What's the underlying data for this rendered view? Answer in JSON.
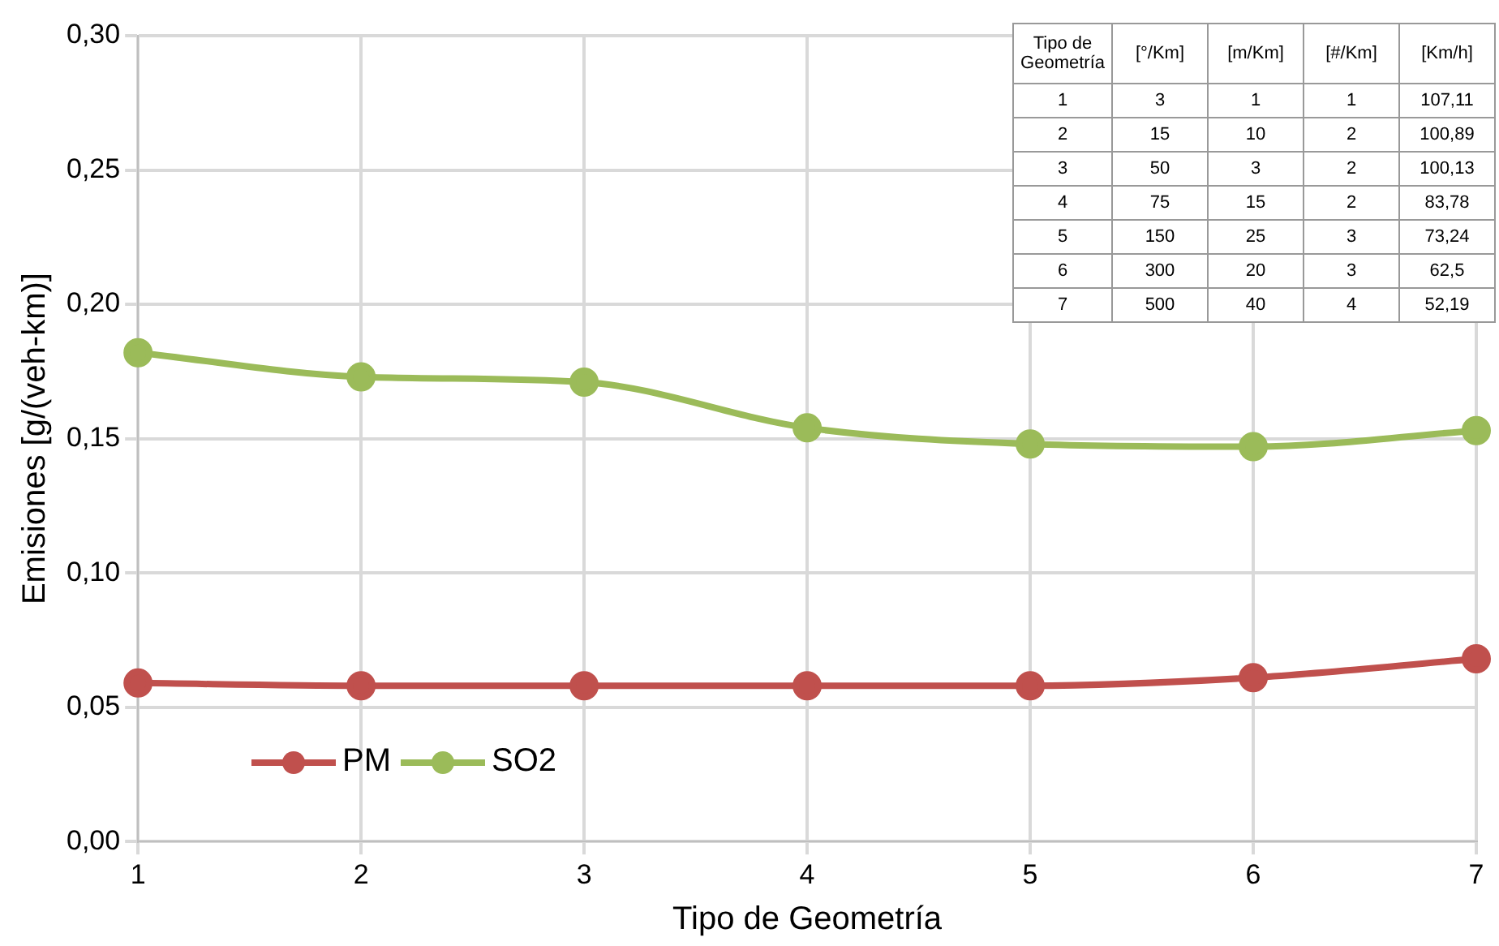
{
  "chart_data": {
    "type": "line",
    "xlabel": "Tipo de Geometría",
    "ylabel": "Emisiones [g/(veh-km)]",
    "categories": [
      "1",
      "2",
      "3",
      "4",
      "5",
      "6",
      "7"
    ],
    "series": [
      {
        "name": "PM",
        "color": "#c0504d",
        "values": [
          0.059,
          0.058,
          0.058,
          0.058,
          0.058,
          0.061,
          0.068
        ]
      },
      {
        "name": "SO2",
        "color": "#9bbb59",
        "values": [
          0.182,
          0.173,
          0.171,
          0.154,
          0.148,
          0.147,
          0.153
        ]
      }
    ],
    "ylim": [
      0,
      0.3
    ],
    "yticks": [
      {
        "value": 0,
        "label": "0,00"
      },
      {
        "value": 0.05,
        "label": "0,05"
      },
      {
        "value": 0.1,
        "label": "0,10"
      },
      {
        "value": 0.15,
        "label": "0,15"
      },
      {
        "value": 0.2,
        "label": "0,20"
      },
      {
        "value": 0.25,
        "label": "0,25"
      },
      {
        "value": 0.3,
        "label": "0,30"
      }
    ],
    "grid": true,
    "legend": "bottom left",
    "marker": "circle",
    "line_style": "solid",
    "annotations": [
      "Tipo de Geometría",
      "[°/Km]",
      "[m/Km]",
      "[#/Km]",
      "[Km/h]",
      "1",
      "3",
      "1",
      "1",
      "107,11",
      "2",
      "15",
      "10",
      "2",
      "100,89",
      "3",
      "50",
      "3",
      "2",
      "100,13",
      "4",
      "75",
      "15",
      "2",
      "83,78",
      "5",
      "150",
      "25",
      "3",
      "73,24",
      "6",
      "300",
      "20",
      "3",
      "62,5",
      "7",
      "500",
      "40",
      "4",
      "52,19"
    ]
  }
}
